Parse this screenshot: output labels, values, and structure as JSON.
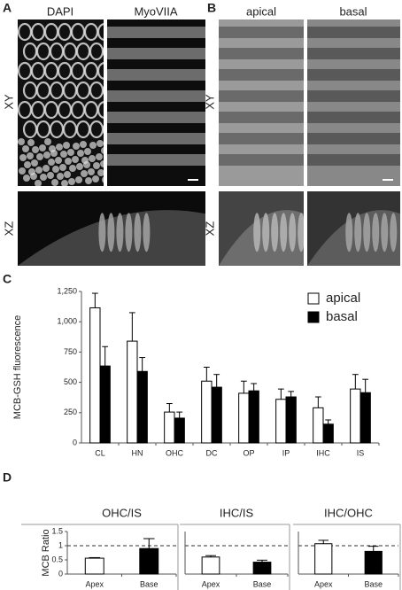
{
  "figure": {
    "panel_labels": [
      "A",
      "B",
      "C",
      "D"
    ],
    "panel_a": {
      "columns": [
        "DAPI",
        "MyoVIIA"
      ],
      "rows": [
        "XY",
        "XZ"
      ]
    },
    "panel_b": {
      "columns": [
        "apical",
        "basal"
      ],
      "rows": [
        "XY",
        "XZ"
      ]
    }
  },
  "chart_data": [
    {
      "type": "bar",
      "ylabel": "MCB-GSH fluorescence",
      "categories": [
        "CL",
        "HN",
        "OHC",
        "DC",
        "OP",
        "IP",
        "IHC",
        "IS"
      ],
      "series": [
        {
          "name": "apical",
          "color": "#ffffff",
          "values": [
            1115,
            840,
            255,
            510,
            410,
            360,
            290,
            445
          ],
          "errors": [
            120,
            235,
            70,
            115,
            100,
            85,
            90,
            120
          ]
        },
        {
          "name": "basal",
          "color": "#000000",
          "values": [
            635,
            590,
            205,
            460,
            430,
            380,
            155,
            415
          ],
          "errors": [
            160,
            115,
            50,
            105,
            60,
            45,
            35,
            110
          ]
        }
      ],
      "ylim": [
        0,
        1250
      ],
      "yticks": [
        0,
        250,
        500,
        750,
        {
          "value": 1000,
          "label": "1,000"
        },
        {
          "value": 1250,
          "label": "1,250"
        }
      ],
      "legend": "upper right",
      "grid": false
    },
    {
      "type": "bar",
      "title": "OHC/IS",
      "ylabel": "MCB Ratio",
      "categories": [
        "Apex",
        "Base"
      ],
      "values": [
        0.56,
        0.9
      ],
      "errors": [
        0.02,
        0.35
      ],
      "colors": [
        "#ffffff",
        "#000000"
      ],
      "ylim": [
        0,
        1.5
      ],
      "yticks": [
        0,
        0.5,
        1,
        1.5
      ],
      "hline": 1
    },
    {
      "type": "bar",
      "title": "IHC/IS",
      "categories": [
        "Apex",
        "Base"
      ],
      "values": [
        0.6,
        0.42
      ],
      "errors": [
        0.05,
        0.07
      ],
      "colors": [
        "#ffffff",
        "#000000"
      ],
      "ylim": [
        0,
        1.5
      ],
      "hline": 1
    },
    {
      "type": "bar",
      "title": "IHC/OHC",
      "categories": [
        "Apex",
        "Base"
      ],
      "values": [
        1.07,
        0.8
      ],
      "errors": [
        0.12,
        0.18
      ],
      "colors": [
        "#ffffff",
        "#000000"
      ],
      "ylim": [
        0,
        1.5
      ],
      "hline": 1
    }
  ]
}
